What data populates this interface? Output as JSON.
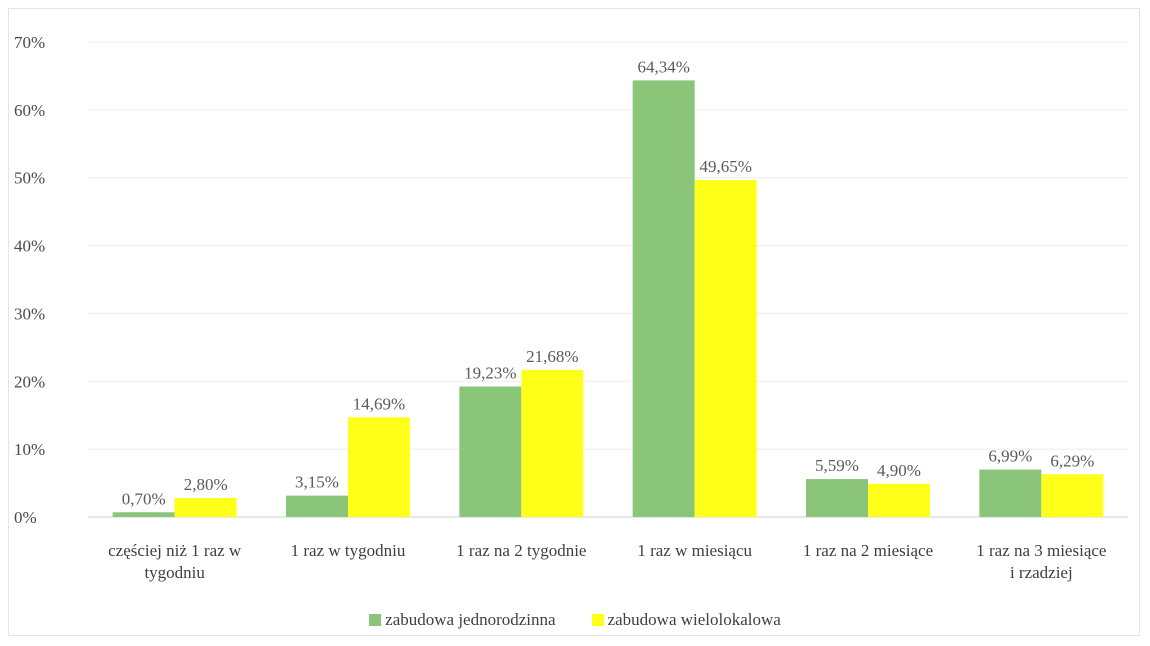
{
  "chart_data": {
    "type": "bar",
    "categories": [
      [
        "częściej niż 1 raz w",
        "tygodniu"
      ],
      [
        "1 raz w tygodniu"
      ],
      [
        "1 raz na 2 tygodnie"
      ],
      [
        "1 raz w miesiącu"
      ],
      [
        "1 raz na 2 miesiące"
      ],
      [
        "1 raz na 3 miesiące",
        "i rzadziej"
      ]
    ],
    "series": [
      {
        "name": "zabudowa jednorodzinna",
        "color": "#8bc57a",
        "values": [
          0.7,
          3.15,
          19.23,
          64.34,
          5.59,
          6.99
        ],
        "labels": [
          "0,70%",
          "3,15%",
          "19,23%",
          "64,34%",
          "5,59%",
          "6,99%"
        ]
      },
      {
        "name": "zabudowa wielolokalowa",
        "color": "#ffff1a",
        "values": [
          2.8,
          14.69,
          21.68,
          49.65,
          4.9,
          6.29
        ],
        "labels": [
          "2,80%",
          "14,69%",
          "21,68%",
          "49,65%",
          "4,90%",
          "6,29%"
        ]
      }
    ],
    "y_ticks": [
      0,
      10,
      20,
      30,
      40,
      50,
      60,
      70
    ],
    "y_tick_labels": [
      "0%",
      "10%",
      "20%",
      "30%",
      "40%",
      "50%",
      "60%",
      "70%"
    ],
    "ylim": [
      0,
      70
    ],
    "grid": true,
    "legend_position": "bottom"
  }
}
